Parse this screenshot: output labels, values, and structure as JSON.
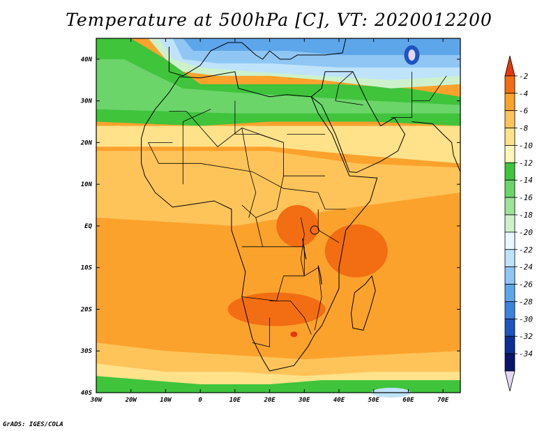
{
  "title": "Temperature at 500hPa [C], VT: 2020012200",
  "credit": "GrADS: IGES/COLA",
  "map": {
    "lat_range": [
      -40,
      45
    ],
    "lon_range": [
      -30,
      75
    ],
    "lat_ticks": [
      {
        "value": 40,
        "label": "40N"
      },
      {
        "value": 30,
        "label": "30N"
      },
      {
        "value": 20,
        "label": "20N"
      },
      {
        "value": 10,
        "label": "10N"
      },
      {
        "value": 0,
        "label": "EQ"
      },
      {
        "value": -10,
        "label": "10S"
      },
      {
        "value": -20,
        "label": "20S"
      },
      {
        "value": -30,
        "label": "30S"
      },
      {
        "value": -40,
        "label": "40S"
      }
    ],
    "lon_ticks": [
      {
        "value": -30,
        "label": "30W"
      },
      {
        "value": -20,
        "label": "20W"
      },
      {
        "value": -10,
        "label": "10W"
      },
      {
        "value": 0,
        "label": "0"
      },
      {
        "value": 10,
        "label": "10E"
      },
      {
        "value": 20,
        "label": "20E"
      },
      {
        "value": 30,
        "label": "30E"
      },
      {
        "value": 40,
        "label": "40E"
      },
      {
        "value": 50,
        "label": "50E"
      },
      {
        "value": 60,
        "label": "60E"
      },
      {
        "value": 70,
        "label": "70E"
      }
    ]
  },
  "colorbar": {
    "labels": [
      "-2",
      "-4",
      "-6",
      "-8",
      "-10",
      "-12",
      "-14",
      "-16",
      "-18",
      "-20",
      "-22",
      "-24",
      "-26",
      "-28",
      "-30",
      "-32",
      "-34"
    ],
    "colors": [
      "#e4390c",
      "#f36d12",
      "#fba22c",
      "#fec45a",
      "#ffe28a",
      "#fff6ba",
      "#3fc43c",
      "#6cd56a",
      "#9ee39a",
      "#cdf2cb",
      "#e7f9ff",
      "#bfe3fb",
      "#8fc6f4",
      "#5ea6ea",
      "#3b83dc",
      "#1f55bf",
      "#0c2f95",
      "#08156b",
      "#e4d8f4"
    ]
  }
}
